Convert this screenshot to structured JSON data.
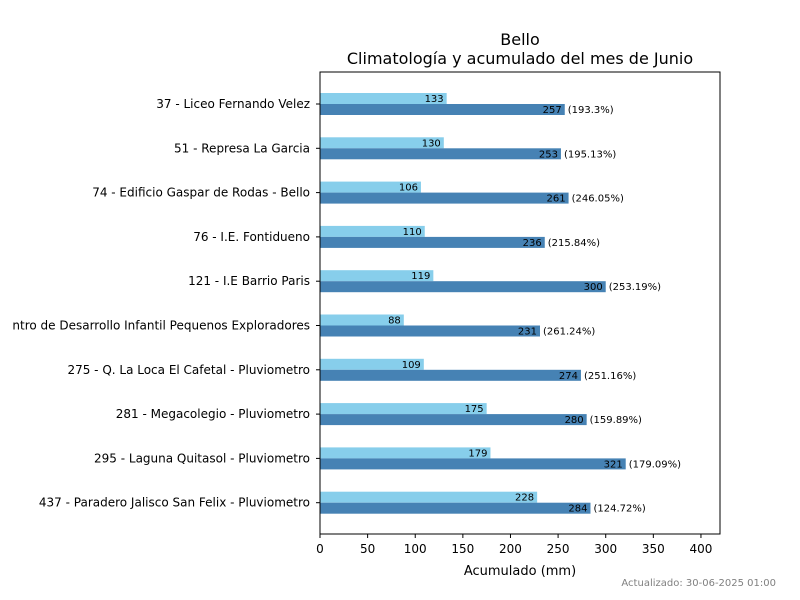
{
  "chart_data": {
    "type": "bar",
    "orientation": "horizontal",
    "title": "Bello",
    "subtitle": "Climatología y acumulado del mes de Junio",
    "xlabel": "Acumulado (mm)",
    "ylabel": "",
    "xlim": [
      0,
      420
    ],
    "x_ticks": [
      0,
      50,
      100,
      150,
      200,
      250,
      300,
      350,
      400
    ],
    "grid": false,
    "categories": [
      "37 - Liceo Fernando Velez",
      "51 - Represa La Garcia",
      "74 - Edificio Gaspar de Rodas - Bello",
      "76 - I.E. Fontidueno",
      "121 - I.E Barrio Paris",
      "ntro de Desarrollo Infantil Pequenos Exploradores",
      "275 - Q. La Loca El Cafetal - Pluviometro",
      "281 - Megacolegio - Pluviometro",
      "295 - Laguna Quitasol - Pluviometro",
      "437 - Paradero Jalisco San Felix - Pluviometro"
    ],
    "series": [
      {
        "color": "#87ceeb",
        "values": [
          133,
          130,
          106,
          110,
          119,
          88,
          109,
          175,
          179,
          228
        ],
        "labels": [
          "133",
          "130",
          "106",
          "110",
          "119",
          "88",
          "109",
          "175",
          "179",
          "228"
        ]
      },
      {
        "color": "#4682b4",
        "values": [
          257,
          253,
          261,
          236,
          300,
          231,
          274,
          280,
          321,
          284
        ],
        "labels": [
          "257",
          "253",
          "261",
          "236",
          "300",
          "231",
          "274",
          "280",
          "321",
          "284"
        ],
        "percent_labels": [
          "(193.3%)",
          "(195.13%)",
          "(246.05%)",
          "(215.84%)",
          "(253.19%)",
          "(261.24%)",
          "(251.16%)",
          "(159.89%)",
          "(179.09%)",
          "(124.72%)"
        ]
      }
    ]
  },
  "footer": {
    "updated": "Actualizado: 30-06-2025 01:00"
  }
}
